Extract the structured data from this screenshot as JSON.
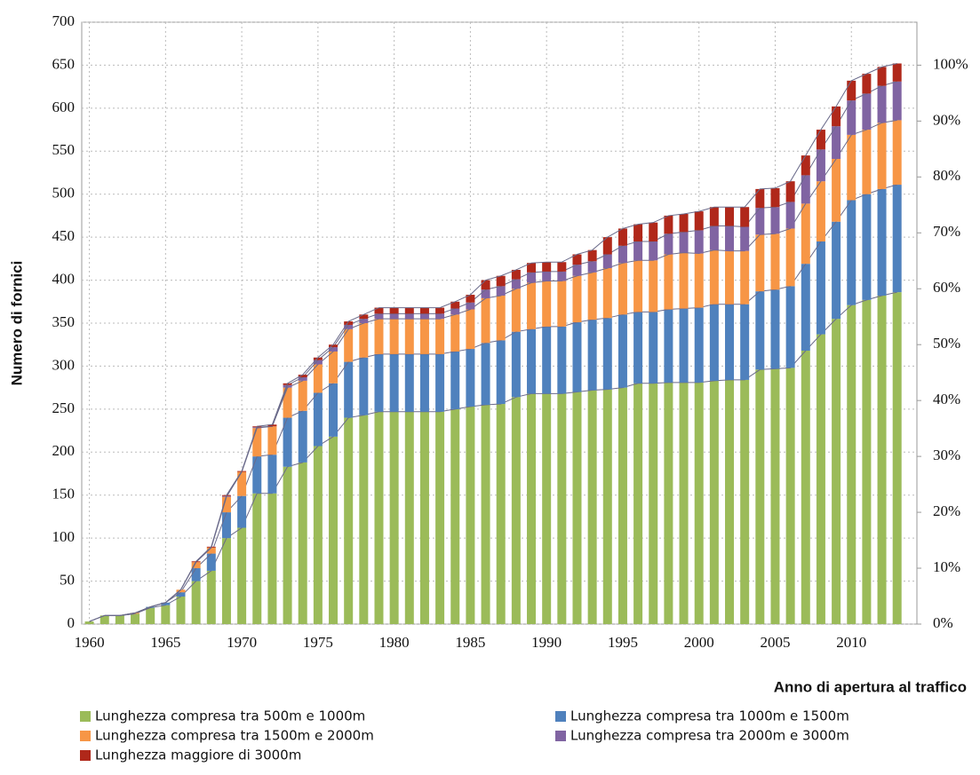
{
  "chart_data": {
    "type": "stacked_bar",
    "y_label": "Numero di fornici",
    "x_label": "Anno di apertura al traffico",
    "x": [
      1960,
      1961,
      1962,
      1963,
      1964,
      1965,
      1966,
      1967,
      1968,
      1969,
      1970,
      1971,
      1972,
      1973,
      1974,
      1975,
      1976,
      1977,
      1978,
      1979,
      1980,
      1981,
      1982,
      1983,
      1984,
      1985,
      1986,
      1987,
      1988,
      1989,
      1990,
      1991,
      1992,
      1993,
      1994,
      1995,
      1996,
      1997,
      1998,
      1999,
      2000,
      2001,
      2002,
      2003,
      2004,
      2005,
      2006,
      2007,
      2008,
      2009,
      2010,
      2011,
      2012,
      2013
    ],
    "xlim": [
      1959.5,
      2014.3
    ],
    "xticks": [
      1960,
      1965,
      1970,
      1975,
      1980,
      1985,
      1990,
      1995,
      2000,
      2005,
      2010
    ],
    "ylim": [
      0,
      700
    ],
    "yticks": [
      0,
      50,
      100,
      150,
      200,
      250,
      300,
      350,
      400,
      450,
      500,
      550,
      600,
      650,
      700
    ],
    "y2lim": [
      0,
      107.69
    ],
    "y2ticks": [
      {
        "value": 0,
        "label": "0%"
      },
      {
        "value": 10,
        "label": "10%"
      },
      {
        "value": 20,
        "label": "20%"
      },
      {
        "value": 30,
        "label": "30%"
      },
      {
        "value": 40,
        "label": "40%"
      },
      {
        "value": 50,
        "label": "50%"
      },
      {
        "value": 60,
        "label": "60%"
      },
      {
        "value": 70,
        "label": "70%"
      },
      {
        "value": 80,
        "label": "80%"
      },
      {
        "value": 90,
        "label": "90%"
      },
      {
        "value": 100,
        "label": "100%"
      }
    ],
    "grid": true,
    "legend": "bottom",
    "series": [
      {
        "name": "Lunghezza compresa tra 500m e 1000m",
        "color": "#9bbb59",
        "values": [
          3,
          10,
          10,
          12,
          19,
          22,
          32,
          50,
          62,
          100,
          112,
          152,
          152,
          183,
          188,
          207,
          218,
          240,
          243,
          247,
          247,
          247,
          247,
          247,
          250,
          253,
          255,
          256,
          264,
          268,
          268,
          268,
          270,
          272,
          273,
          275,
          280,
          280,
          281,
          281,
          281,
          283,
          284,
          284,
          296,
          297,
          298,
          318,
          337,
          355,
          371,
          377,
          382,
          386
        ]
      },
      {
        "name": "Lunghezza compresa tra 1000m e 1500m",
        "color": "#4f81bd",
        "values": [
          0,
          0,
          0,
          0,
          1,
          3,
          5,
          15,
          20,
          30,
          37,
          43,
          45,
          57,
          60,
          62,
          62,
          65,
          67,
          67,
          67,
          67,
          67,
          67,
          67,
          67,
          72,
          74,
          76,
          75,
          78,
          78,
          81,
          82,
          83,
          85,
          83,
          83,
          85,
          86,
          87,
          89,
          88,
          88,
          91,
          92,
          95,
          101,
          108,
          113,
          122,
          123,
          124,
          125
        ]
      },
      {
        "name": "Lunghezza compresa tra 1500m e 2000m",
        "color": "#f79646",
        "values": [
          0,
          0,
          0,
          1,
          0,
          0,
          3,
          7,
          7,
          18,
          28,
          33,
          33,
          35,
          35,
          33,
          37,
          38,
          40,
          41,
          41,
          41,
          41,
          41,
          43,
          46,
          52,
          52,
          50,
          54,
          53,
          53,
          54,
          55,
          58,
          60,
          60,
          60,
          64,
          65,
          63,
          63,
          62,
          62,
          66,
          65,
          67,
          70,
          70,
          73,
          76,
          75,
          77,
          75
        ]
      },
      {
        "name": "Lunghezza compresa tra 2000m e 3000m",
        "color": "#8064a2",
        "values": [
          0,
          0,
          0,
          0,
          0,
          0,
          0,
          0,
          0,
          1,
          0,
          1,
          0,
          3,
          4,
          5,
          5,
          5,
          5,
          6,
          6,
          6,
          6,
          6,
          7,
          8,
          10,
          11,
          11,
          12,
          11,
          11,
          13,
          13,
          16,
          20,
          22,
          22,
          24,
          24,
          27,
          28,
          29,
          28,
          31,
          31,
          31,
          33,
          37,
          38,
          40,
          42,
          43,
          45
        ]
      },
      {
        "name": "Lunghezza maggiore di 3000m",
        "color": "#b0281a",
        "values": [
          0,
          0,
          0,
          0,
          0,
          0,
          0,
          1,
          1,
          1,
          1,
          1,
          2,
          2,
          3,
          3,
          3,
          4,
          5,
          7,
          7,
          7,
          7,
          7,
          8,
          9,
          11,
          12,
          11,
          11,
          11,
          11,
          12,
          13,
          20,
          20,
          20,
          22,
          21,
          21,
          22,
          22,
          22,
          23,
          22,
          22,
          24,
          23,
          23,
          23,
          23,
          23,
          22,
          21
        ]
      }
    ]
  }
}
